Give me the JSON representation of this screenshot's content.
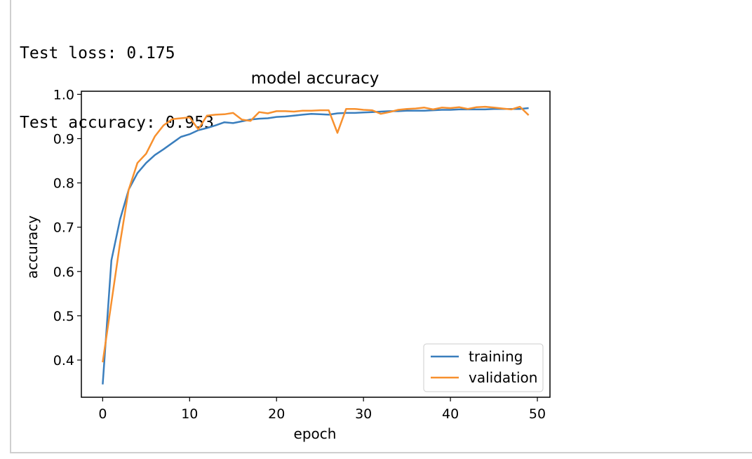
{
  "output": {
    "lines": [
      "Test loss: 0.175",
      "Test accuracy: 0.953"
    ]
  },
  "chart_data": {
    "type": "line",
    "title": "model accuracy",
    "xlabel": "epoch",
    "ylabel": "accuracy",
    "xlim": [
      -2.45,
      51.45
    ],
    "ylim": [
      0.316,
      1.007
    ],
    "xticks": [
      0,
      10,
      20,
      30,
      40,
      50
    ],
    "yticks": [
      0.4,
      0.5,
      0.6,
      0.7,
      0.8,
      0.9,
      1.0
    ],
    "xtick_labels": [
      "0",
      "10",
      "20",
      "30",
      "40",
      "50"
    ],
    "ytick_labels": [
      "0.4",
      "0.5",
      "0.6",
      "0.7",
      "0.8",
      "0.9",
      "1.0"
    ],
    "grid": false,
    "legend_position": "lower-right",
    "x": [
      0,
      1,
      2,
      3,
      4,
      5,
      6,
      7,
      8,
      9,
      10,
      11,
      12,
      13,
      14,
      15,
      16,
      17,
      18,
      19,
      20,
      21,
      22,
      23,
      24,
      25,
      26,
      27,
      28,
      29,
      30,
      31,
      32,
      33,
      34,
      35,
      36,
      37,
      38,
      39,
      40,
      41,
      42,
      43,
      44,
      45,
      46,
      47,
      48,
      49
    ],
    "series": [
      {
        "name": "training",
        "color": "#3a7ebd",
        "values": [
          0.345,
          0.625,
          0.718,
          0.785,
          0.822,
          0.845,
          0.863,
          0.876,
          0.89,
          0.904,
          0.91,
          0.919,
          0.924,
          0.93,
          0.937,
          0.935,
          0.939,
          0.943,
          0.945,
          0.946,
          0.949,
          0.95,
          0.952,
          0.954,
          0.956,
          0.955,
          0.954,
          0.957,
          0.958,
          0.958,
          0.959,
          0.96,
          0.961,
          0.962,
          0.962,
          0.963,
          0.963,
          0.963,
          0.964,
          0.965,
          0.965,
          0.966,
          0.966,
          0.966,
          0.966,
          0.967,
          0.967,
          0.967,
          0.967,
          0.969
        ]
      },
      {
        "name": "validation",
        "color": "#f7902e",
        "values": [
          0.395,
          0.53,
          0.665,
          0.785,
          0.845,
          0.866,
          0.905,
          0.93,
          0.944,
          0.946,
          0.948,
          0.921,
          0.952,
          0.954,
          0.955,
          0.958,
          0.943,
          0.94,
          0.96,
          0.957,
          0.962,
          0.962,
          0.961,
          0.963,
          0.963,
          0.964,
          0.964,
          0.913,
          0.967,
          0.967,
          0.965,
          0.964,
          0.956,
          0.96,
          0.965,
          0.967,
          0.968,
          0.97,
          0.966,
          0.97,
          0.969,
          0.971,
          0.967,
          0.971,
          0.972,
          0.97,
          0.968,
          0.966,
          0.972,
          0.953
        ]
      }
    ]
  }
}
